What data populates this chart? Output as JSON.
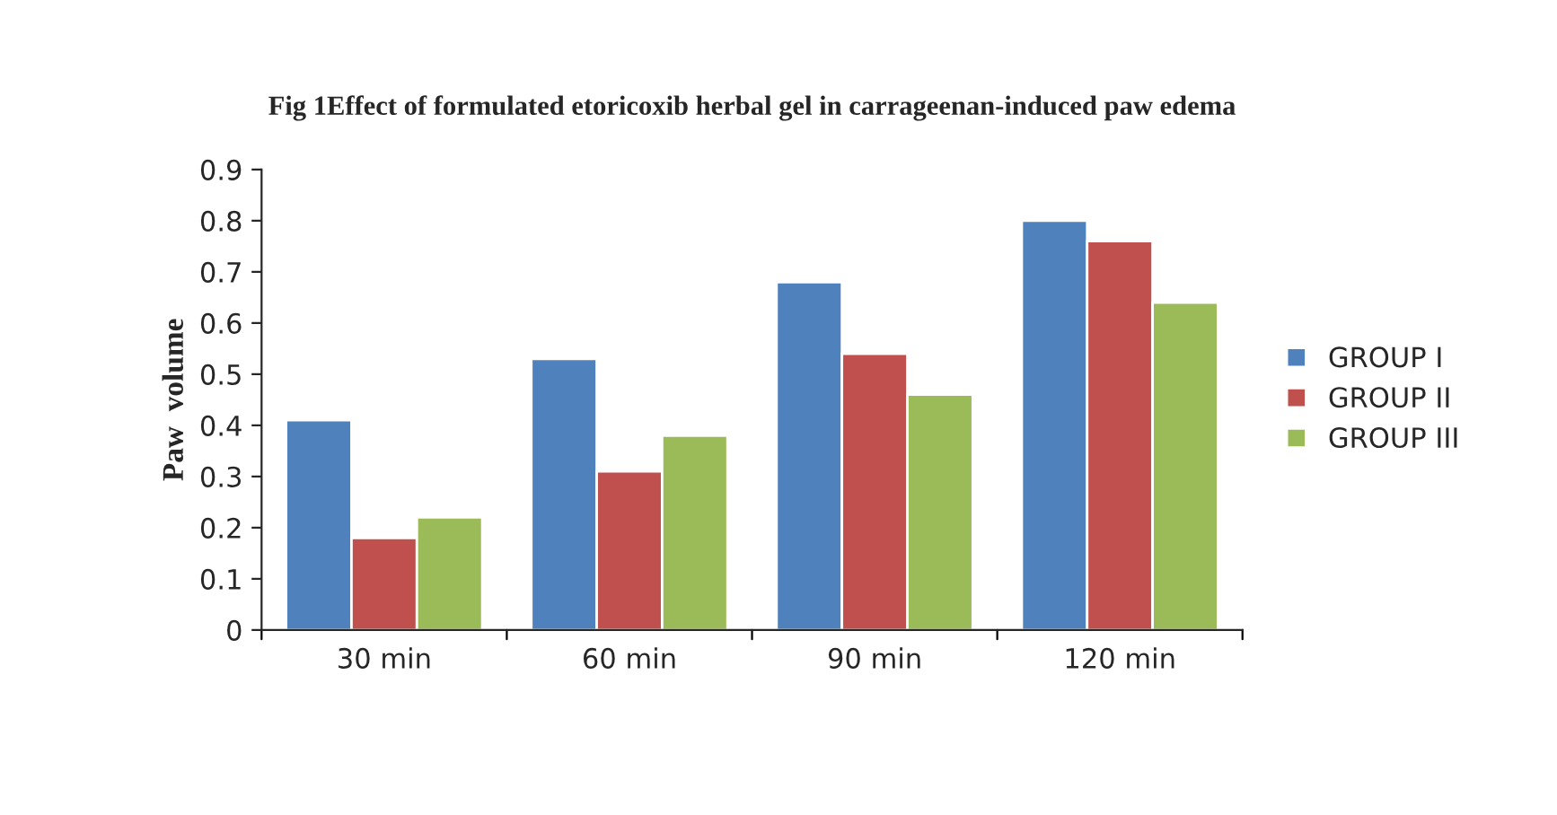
{
  "chart_data": {
    "type": "bar",
    "title": "Fig 1Effect of formulated etoricoxib herbal gel in carrageenan-induced paw edema",
    "ylabel": "Paw  volume",
    "categories": [
      "30 min",
      "60 min",
      "90 min",
      "120 min"
    ],
    "series": [
      {
        "name": "GROUP I",
        "color": "#4f81bd",
        "values": [
          0.41,
          0.53,
          0.68,
          0.8
        ]
      },
      {
        "name": "GROUP II",
        "color": "#c0504d",
        "values": [
          0.18,
          0.31,
          0.54,
          0.76
        ]
      },
      {
        "name": "GROUP III",
        "color": "#9bbb59",
        "values": [
          0.22,
          0.38,
          0.46,
          0.64
        ]
      }
    ],
    "ylim": [
      0,
      0.9
    ],
    "yticks": [
      0,
      0.1,
      0.2,
      0.3,
      0.4,
      0.5,
      0.6,
      0.7,
      0.8,
      0.9
    ],
    "grid": false,
    "legend": "right"
  }
}
